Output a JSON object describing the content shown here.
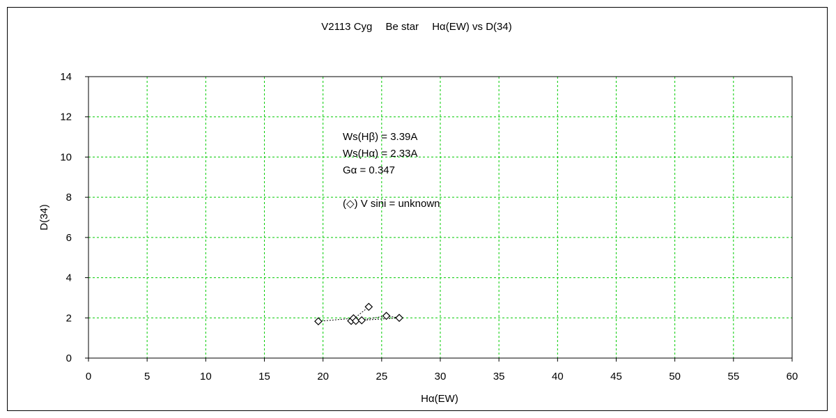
{
  "chart_data": {
    "type": "scatter",
    "title": "V2113 Cyg　 Be star　 Hα(EW) vs D(34)",
    "xlabel": "Hα(EW)",
    "ylabel": "D(34)",
    "xlim": [
      0,
      60
    ],
    "ylim": [
      0,
      14
    ],
    "x_ticks": [
      "0",
      "5",
      "10",
      "15",
      "20",
      "25",
      "30",
      "35",
      "40",
      "45",
      "50",
      "55",
      "60"
    ],
    "y_ticks": [
      "0",
      "2",
      "4",
      "6",
      "8",
      "10",
      "12",
      "14"
    ],
    "grid": true,
    "grid_color": "#00cc00",
    "marker": "diamond",
    "series": [
      {
        "points": [
          [
            19.6,
            1.83
          ],
          [
            22.4,
            1.85
          ],
          [
            22.6,
            1.98
          ],
          [
            22.8,
            1.85
          ],
          [
            23.3,
            1.88
          ],
          [
            23.9,
            2.55
          ],
          [
            25.4,
            2.1
          ],
          [
            26.5,
            2.0
          ]
        ],
        "connect_order": [
          0,
          2,
          3,
          6,
          7,
          4,
          1,
          5
        ],
        "line_style": "dotted"
      }
    ],
    "annotations": [
      "Ws(Hβ) = 3.39A",
      "Ws(Hα) = 2.33A",
      "Gα = 0.347",
      "(◇) V sini = unknown"
    ]
  }
}
